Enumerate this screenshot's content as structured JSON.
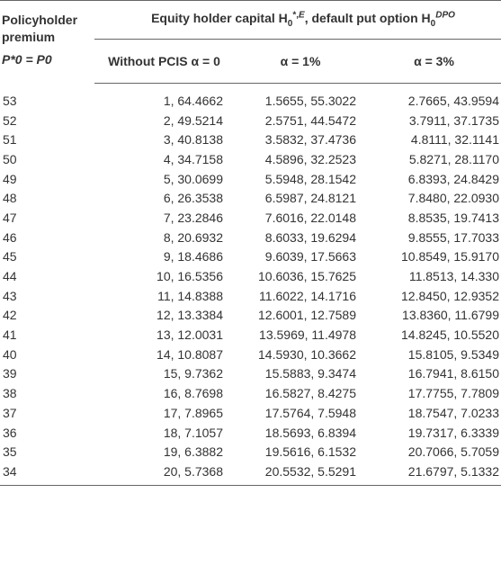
{
  "header": {
    "policyholder_premium": "Policyholder premium",
    "premium_symbol": "P*0 = P0",
    "group_title": "Equity holder capital H0*,E, default put option H0DPO",
    "col_without": "Without PCIS α = 0",
    "col_alpha1": "α = 1%",
    "col_alpha3": "α = 3%"
  },
  "rows": [
    {
      "p": "53",
      "a0": "1, 64.4662",
      "a1": "1.5655, 55.3022",
      "a3": "2.7665, 43.9594"
    },
    {
      "p": "52",
      "a0": "2, 49.5214",
      "a1": "2.5751, 44.5472",
      "a3": "3.7911, 37.1735"
    },
    {
      "p": "51",
      "a0": "3, 40.8138",
      "a1": "3.5832, 37.4736",
      "a3": "4.8111, 32.1141"
    },
    {
      "p": "50",
      "a0": "4, 34.7158",
      "a1": "4.5896, 32.2523",
      "a3": "5.8271, 28.1170"
    },
    {
      "p": "49",
      "a0": "5, 30.0699",
      "a1": "5.5948, 28.1542",
      "a3": "6.8393, 24.8429"
    },
    {
      "p": "48",
      "a0": "6, 26.3538",
      "a1": "6.5987, 24.8121",
      "a3": "7.8480, 22.0930"
    },
    {
      "p": "47",
      "a0": "7, 23.2846",
      "a1": "7.6016, 22.0148",
      "a3": "8.8535, 19.7413"
    },
    {
      "p": "46",
      "a0": "8, 20.6932",
      "a1": "8.6033, 19.6294",
      "a3": "9.8555, 17.7033"
    },
    {
      "p": "45",
      "a0": "9, 18.4686",
      "a1": "9.6039, 17.5663",
      "a3": "10.8549, 15.9170"
    },
    {
      "p": "44",
      "a0": "10, 16.5356",
      "a1": "10.6036, 15.7625",
      "a3": "11.8513, 14.330"
    },
    {
      "p": "43",
      "a0": "11, 14.8388",
      "a1": "11.6022, 14.1716",
      "a3": "12.8450, 12.9352"
    },
    {
      "p": "42",
      "a0": "12, 13.3384",
      "a1": "12.6001, 12.7589",
      "a3": "13.8360, 11.6799"
    },
    {
      "p": "41",
      "a0": "13, 12.0031",
      "a1": "13.5969, 11.4978",
      "a3": "14.8245, 10.5520"
    },
    {
      "p": "40",
      "a0": "14, 10.8087",
      "a1": "14.5930, 10.3662",
      "a3": "15.8105, 9.5349"
    },
    {
      "p": "39",
      "a0": "15, 9.7362",
      "a1": "15.5883, 9.3474",
      "a3": "16.7941, 8.6150"
    },
    {
      "p": "38",
      "a0": "16, 8.7698",
      "a1": "16.5827, 8.4275",
      "a3": "17.7755, 7.7809"
    },
    {
      "p": "37",
      "a0": "17, 7.8965",
      "a1": "17.5764, 7.5948",
      "a3": "18.7547, 7.0233"
    },
    {
      "p": "36",
      "a0": "18, 7.1057",
      "a1": "18.5693, 6.8394",
      "a3": "19.7317, 6.3339"
    },
    {
      "p": "35",
      "a0": "19, 6.3882",
      "a1": "19.5616, 6.1532",
      "a3": "20.7066, 5.7059"
    },
    {
      "p": "34",
      "a0": "20, 5.7368",
      "a1": "20.5532, 5.5291",
      "a3": "21.6797, 5.1332"
    }
  ]
}
